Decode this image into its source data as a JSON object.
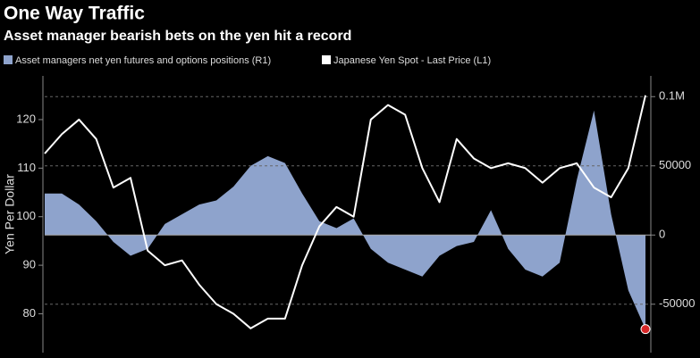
{
  "chart_data": {
    "type": "line_area_dual",
    "title": "One Way Traffic",
    "subtitle": "Asset manager bearish bets on the yen hit a record",
    "y_label": "Yen Per Dollar",
    "categories": [
      null,
      null,
      null,
      null,
      null,
      null,
      null,
      null,
      null,
      null,
      null,
      null,
      null,
      null,
      null,
      null,
      null,
      null,
      null,
      null,
      null,
      null,
      null,
      null,
      null,
      null,
      null,
      null,
      null,
      null,
      null,
      null,
      null,
      null,
      null,
      null
    ],
    "series": [
      {
        "name": "Asset managers net yen futures and options positions (R1)",
        "color": "#8ea3cc",
        "axis": "y2",
        "kind": "area",
        "values": [
          30000,
          30000,
          22000,
          10000,
          -5000,
          -15000,
          -10000,
          8000,
          15000,
          22000,
          25000,
          35000,
          50000,
          57000,
          52000,
          30000,
          10000,
          5000,
          12000,
          -10000,
          -20000,
          -25000,
          -30000,
          -15000,
          -8000,
          -5000,
          18000,
          -10000,
          -25000,
          -30000,
          -20000,
          40000,
          90000,
          15000,
          -40000,
          -68000
        ]
      },
      {
        "name": "Japanese Yen Spot - Last Price (L1)",
        "color": "#ffffff",
        "axis": "y",
        "kind": "line",
        "values": [
          113,
          117,
          120,
          116,
          106,
          108,
          93,
          90,
          91,
          86,
          82,
          80,
          77,
          79,
          79,
          90,
          98,
          102,
          100,
          120,
          123,
          121,
          110,
          103,
          116,
          112,
          110,
          111,
          110,
          107,
          110,
          111,
          106,
          104,
          110,
          125
        ]
      }
    ],
    "ylim": [
      72,
      129
    ],
    "yticks": [
      80,
      90,
      100,
      110,
      120
    ],
    "y2lim": [
      -85000,
      115000
    ],
    "y2ticks": [
      {
        "value": -50000,
        "label": "-50000"
      },
      0,
      50000,
      {
        "value": 100000,
        "label": "0.1M"
      }
    ],
    "grid": true
  }
}
